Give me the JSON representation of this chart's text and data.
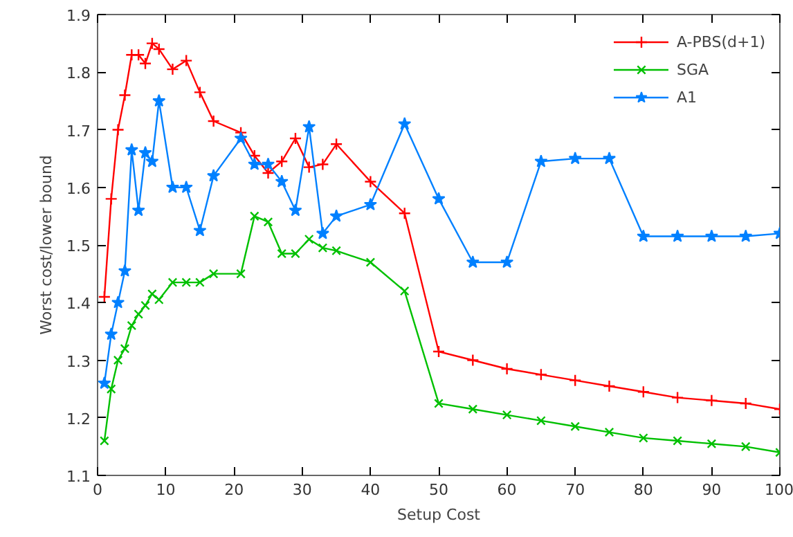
{
  "chart_data": {
    "type": "line",
    "xlabel": "Setup Cost",
    "ylabel": "Worst cost/lower bound",
    "x": [
      1,
      2,
      3,
      4,
      5,
      6,
      7,
      8,
      9,
      11,
      13,
      15,
      17,
      21,
      23,
      25,
      27,
      29,
      31,
      33,
      35,
      40,
      45,
      50,
      55,
      60,
      65,
      70,
      75,
      80,
      85,
      90,
      95,
      100
    ],
    "xlim": [
      0,
      100
    ],
    "xticks": [
      0,
      10,
      20,
      30,
      40,
      50,
      60,
      70,
      80,
      90,
      100
    ],
    "ylim": [
      1.1,
      1.9
    ],
    "yticks": [
      1.1,
      1.2,
      1.3,
      1.4,
      1.5,
      1.6,
      1.7,
      1.8,
      1.9
    ],
    "grid": false,
    "legend": "top right",
    "line_style": "solid",
    "series": [
      {
        "name": "A-PBS(d+1)",
        "color": "#ff0000",
        "marker": "cross",
        "values": [
          1.41,
          1.58,
          1.7,
          1.76,
          1.83,
          1.83,
          1.815,
          1.85,
          1.84,
          1.805,
          1.82,
          1.765,
          1.715,
          1.695,
          1.655,
          1.625,
          1.645,
          1.685,
          1.635,
          1.64,
          1.675,
          1.61,
          1.555,
          1.315,
          1.3,
          1.285,
          1.275,
          1.265,
          1.255,
          1.245,
          1.235,
          1.23,
          1.225,
          1.215
        ]
      },
      {
        "name": "SGA",
        "color": "#00c000",
        "marker": "x",
        "values": [
          1.16,
          1.25,
          1.3,
          1.32,
          1.36,
          1.38,
          1.395,
          1.415,
          1.405,
          1.435,
          1.435,
          1.435,
          1.45,
          1.45,
          1.55,
          1.54,
          1.485,
          1.485,
          1.51,
          1.495,
          1.49,
          1.47,
          1.42,
          1.225,
          1.215,
          1.205,
          1.195,
          1.185,
          1.175,
          1.165,
          1.16,
          1.155,
          1.15,
          1.14
        ]
      },
      {
        "name": "A1",
        "color": "#0080ff",
        "marker": "star",
        "values": [
          1.26,
          1.345,
          1.4,
          1.455,
          1.665,
          1.56,
          1.66,
          1.645,
          1.75,
          1.6,
          1.6,
          1.525,
          1.62,
          1.685,
          1.64,
          1.64,
          1.61,
          1.56,
          1.705,
          1.52,
          1.55,
          1.57,
          1.71,
          1.58,
          1.47,
          1.47,
          1.645,
          1.65,
          1.65,
          1.515,
          1.515,
          1.515,
          1.515,
          1.52
        ]
      }
    ]
  }
}
